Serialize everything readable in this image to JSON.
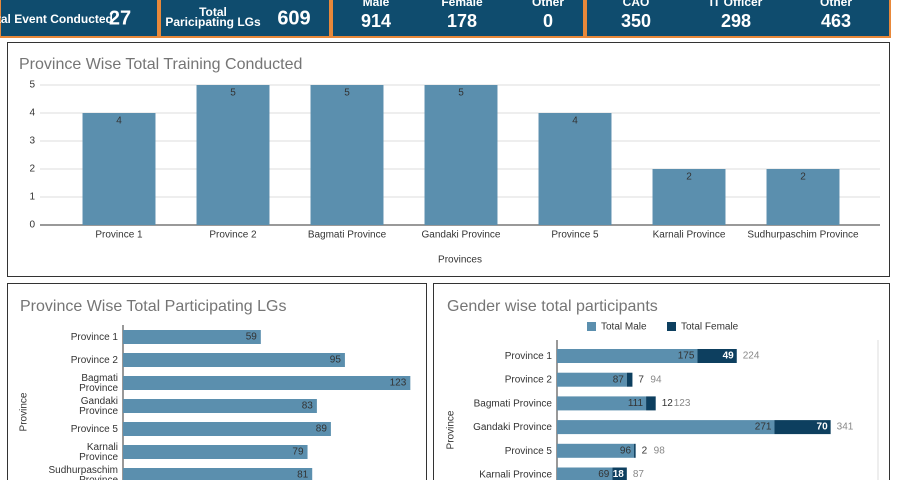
{
  "kpis": [
    {
      "label": "Total Event Conducted",
      "value": 27
    },
    {
      "label": "Total Paricipating LGs",
      "value": 609
    },
    {
      "items": [
        {
          "label": "Male",
          "value": 914
        },
        {
          "label": "Female",
          "value": 178
        },
        {
          "label": "Other",
          "value": 0
        }
      ]
    },
    {
      "items": [
        {
          "label": "CAO",
          "value": 350
        },
        {
          "label": "IT Officer",
          "value": 298
        },
        {
          "label": "Other",
          "value": 463
        }
      ]
    }
  ],
  "chart_data": [
    {
      "type": "bar",
      "title": "Province Wise Total Training Conducted",
      "x_label": "Provinces",
      "categories": [
        "Province 1",
        "Province 2",
        "Bagmati Province",
        "Gandaki Province",
        "Province 5",
        "Karnali Province",
        "Sudhurpaschim Province"
      ],
      "values": [
        4,
        5,
        5,
        5,
        4,
        2,
        2
      ],
      "color": "#5b8fae",
      "ylim": [
        0,
        5
      ],
      "yticks": [
        0,
        1,
        2,
        3,
        4,
        5
      ],
      "grid": true
    },
    {
      "type": "hbar",
      "title": "Province Wise Total Participating LGs",
      "y_label": "Province",
      "categories": [
        "Province 1",
        "Province 2",
        "Bagmati Province",
        "Gandaki Province",
        "Province 5",
        "Karnali Province",
        "Sudhurpaschim Province"
      ],
      "values": [
        59,
        95,
        123,
        83,
        89,
        79,
        81
      ],
      "color": "#5b8fae",
      "xlim": [
        0,
        125
      ]
    },
    {
      "type": "stacked_hbar",
      "title": "Gender wise total participants",
      "y_label": "Province",
      "categories": [
        "Province 1",
        "Province 2",
        "Bagmati Province",
        "Gandaki Province",
        "Province 5",
        "Karnali Province"
      ],
      "series": [
        {
          "name": "Total Male",
          "color": "#5b8fae",
          "values": [
            175,
            87,
            111,
            271,
            96,
            69
          ]
        },
        {
          "name": "Total Female",
          "color": "#0d3f5f",
          "values": [
            49,
            7,
            12,
            70,
            2,
            18
          ]
        }
      ],
      "totals": [
        224,
        94,
        123,
        341,
        98,
        87
      ],
      "xlim": [
        0,
        400
      ]
    }
  ]
}
